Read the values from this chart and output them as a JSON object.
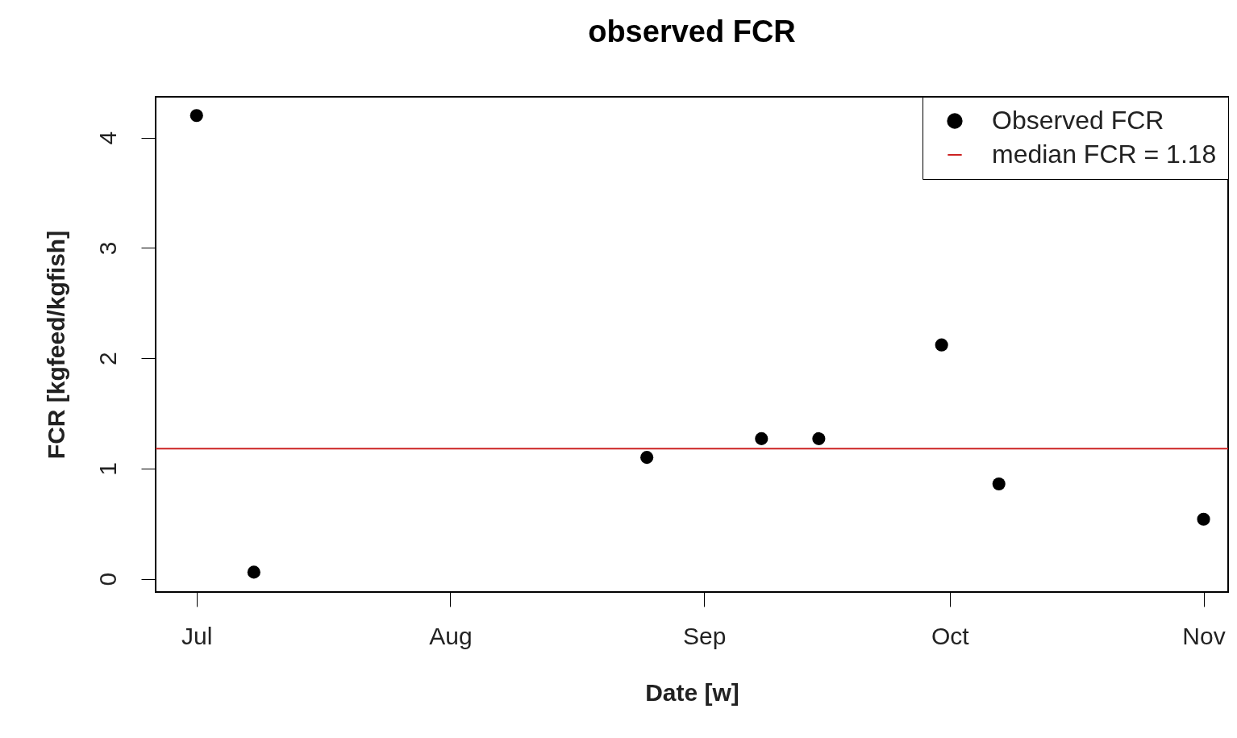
{
  "chart_data": {
    "type": "scatter",
    "title": "observed FCR",
    "xlabel": "Date [w]",
    "ylabel": "FCR [kgfeed/kgfish]",
    "x": [
      "--07-01",
      "--07-08",
      "--08-25",
      "--09-08",
      "--09-15",
      "--09-30",
      "--10-07",
      "--11-01"
    ],
    "series": [
      {
        "name": "Observed FCR",
        "color": "#000000",
        "values": [
          4.2,
          0.06,
          1.1,
          1.27,
          1.27,
          2.12,
          0.86,
          0.54
        ]
      }
    ],
    "xlim": [
      "--06-26",
      "--11-04"
    ],
    "xticks": [
      {
        "value": "--07-01",
        "label": "Jul"
      },
      {
        "value": "--08-01",
        "label": "Aug"
      },
      {
        "value": "--09-01",
        "label": "Sep"
      },
      {
        "value": "--10-01",
        "label": "Oct"
      },
      {
        "value": "--11-01",
        "label": "Nov"
      }
    ],
    "ylim": [
      -0.12,
      4.37
    ],
    "yticks": [
      0,
      1,
      2,
      3,
      4
    ],
    "ref_lines": [
      {
        "axis": "y",
        "value": 1.18,
        "label": "median FCR = 1.18",
        "color": "#cc2222"
      }
    ],
    "legend": "top right",
    "marker": "circle",
    "grid": false
  }
}
